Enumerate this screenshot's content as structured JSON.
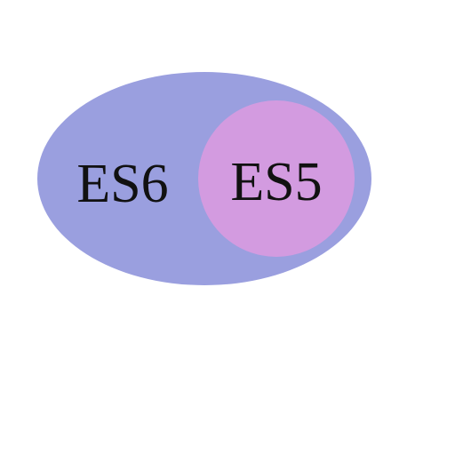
{
  "diagram": {
    "outer": {
      "label": "ES6",
      "color": "#9a9fdf"
    },
    "inner": {
      "label": "ES5",
      "color": "#d39be0"
    }
  }
}
